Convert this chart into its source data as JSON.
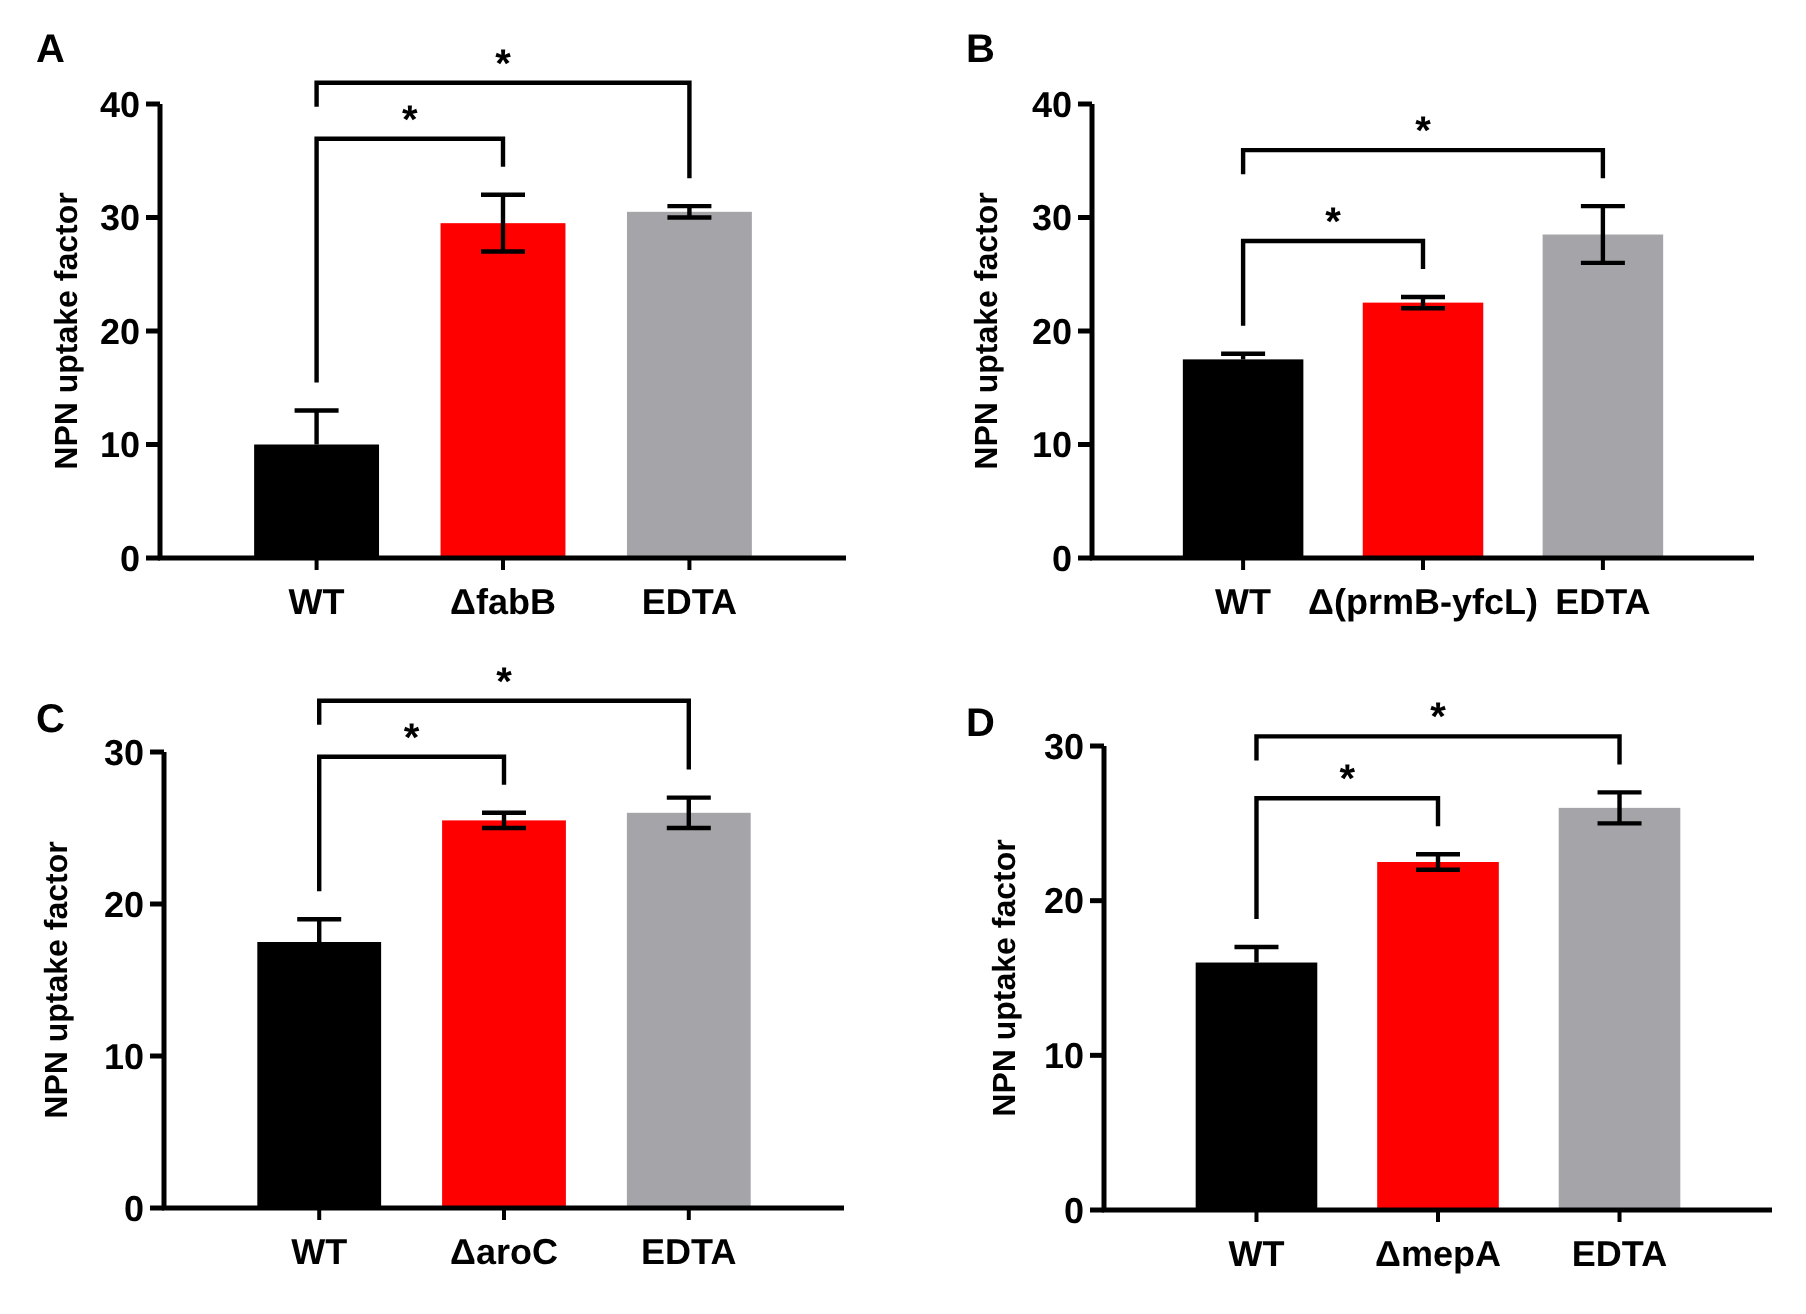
{
  "chart_data": [
    {
      "type": "bar",
      "title": "A",
      "ylabel": "NPN uptake factor",
      "categories": [
        "WT",
        "ΔfabB",
        "EDTA"
      ],
      "values": [
        10,
        29.5,
        30.5
      ],
      "errors": [
        [
          10,
          13
        ],
        2.5,
        0.5
      ],
      "colors": [
        "#000000",
        "#ff0000",
        "#a5a4a9"
      ],
      "ylim": [
        0,
        40
      ],
      "yticks": [
        0,
        10,
        20,
        30,
        40
      ],
      "annotations": [
        "*",
        "*"
      ]
    },
    {
      "type": "bar",
      "title": "B",
      "ylabel": "NPN uptake factor",
      "categories": [
        "WT",
        "Δ(prmB-yfcL)",
        "EDTA"
      ],
      "values": [
        17.5,
        22.5,
        28.5
      ],
      "errors": [
        [
          17.5,
          18
        ],
        0.5,
        2.5
      ],
      "colors": [
        "#000000",
        "#ff0000",
        "#a5a4a9"
      ],
      "ylim": [
        0,
        40
      ],
      "yticks": [
        0,
        10,
        20,
        30,
        40
      ],
      "annotations": [
        "*",
        "*"
      ]
    },
    {
      "type": "bar",
      "title": "C",
      "ylabel": "NPN uptake factor",
      "categories": [
        "WT",
        "ΔaroC",
        "EDTA"
      ],
      "values": [
        17.5,
        25.5,
        26
      ],
      "errors": [
        [
          17.5,
          19
        ],
        0.5,
        1
      ],
      "colors": [
        "#000000",
        "#ff0000",
        "#a5a4a9"
      ],
      "ylim": [
        0,
        30
      ],
      "yticks": [
        0,
        10,
        20,
        30
      ],
      "annotations": [
        "*",
        "*"
      ]
    },
    {
      "type": "bar",
      "title": "D",
      "ylabel": "NPN uptake factor",
      "categories": [
        "WT",
        "ΔmepA",
        "EDTA"
      ],
      "values": [
        16,
        22.5,
        26
      ],
      "errors": [
        [
          16,
          17
        ],
        0.5,
        1
      ],
      "colors": [
        "#000000",
        "#ff0000",
        "#a5a4a9"
      ],
      "ylim": [
        0,
        30
      ],
      "yticks": [
        0,
        10,
        20,
        30
      ],
      "annotations": [
        "*",
        "*"
      ]
    }
  ]
}
